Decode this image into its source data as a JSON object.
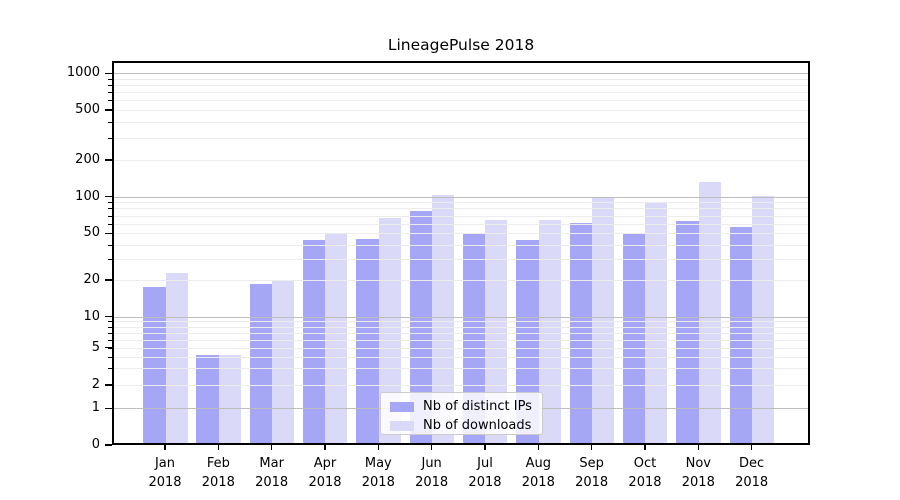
{
  "title": "LineagePulse 2018",
  "colors": {
    "bar_ips": "#a6a6f6",
    "bar_downloads": "#dadaf8",
    "major_grid": "#bdbdbd",
    "minor_grid": "#ececec",
    "spine": "#000000",
    "text": "#000000",
    "legend_border": "#cccccc"
  },
  "legend": {
    "items": [
      {
        "label": "Nb of distinct IPs",
        "color": "#a6a6f6"
      },
      {
        "label": "Nb of downloads",
        "color": "#dadaf8"
      }
    ]
  },
  "axes": {
    "y_tick_values": [
      0,
      1,
      2,
      5,
      10,
      20,
      50,
      100,
      200,
      500,
      1000
    ],
    "y_tick_labels": [
      "0",
      "1",
      "2",
      "5",
      "10",
      "20",
      "50",
      "100",
      "200",
      "500",
      "1000"
    ],
    "y_minor_values": [
      2,
      3,
      4,
      5,
      6,
      7,
      8,
      9,
      20,
      30,
      40,
      50,
      60,
      70,
      80,
      90,
      200,
      300,
      400,
      500,
      600,
      700,
      800,
      900
    ],
    "y_major_grid_values": [
      1,
      10,
      100,
      1000
    ],
    "x_tick_labels": [
      [
        "Jan",
        "2018"
      ],
      [
        "Feb",
        "2018"
      ],
      [
        "Mar",
        "2018"
      ],
      [
        "Apr",
        "2018"
      ],
      [
        "May",
        "2018"
      ],
      [
        "Jun",
        "2018"
      ],
      [
        "Jul",
        "2018"
      ],
      [
        "Aug",
        "2018"
      ],
      [
        "Sep",
        "2018"
      ],
      [
        "Oct",
        "2018"
      ],
      [
        "Nov",
        "2018"
      ],
      [
        "Dec",
        "2018"
      ]
    ]
  },
  "chart_data": {
    "type": "bar",
    "title": "LineagePulse 2018",
    "categories": [
      "Jan 2018",
      "Feb 2018",
      "Mar 2018",
      "Apr 2018",
      "May 2018",
      "Jun 2018",
      "Jul 2018",
      "Aug 2018",
      "Sep 2018",
      "Oct 2018",
      "Nov 2018",
      "Dec 2018"
    ],
    "series": [
      {
        "name": "Nb of distinct IPs",
        "color": "#a6a6f6",
        "values": [
          17,
          4,
          18,
          42,
          43,
          73,
          47,
          42,
          58,
          48,
          61,
          54
        ]
      },
      {
        "name": "Nb of downloads",
        "color": "#dadaf8",
        "values": [
          22,
          4,
          19,
          48,
          64,
          100,
          62,
          62,
          94,
          87,
          127,
          97
        ]
      }
    ],
    "xlabel": "",
    "ylabel": "",
    "yscale": "log (1-2-5 labeled ticks, linear segment 0-1)",
    "yticks": [
      0,
      1,
      2,
      5,
      10,
      20,
      50,
      100,
      200,
      500,
      1000
    ],
    "ylim": [
      0,
      1200
    ],
    "grid": "horizontal, major dark at powers of 10 + light minor, drawn over bars",
    "legend_position": "inside plot, lower center"
  }
}
